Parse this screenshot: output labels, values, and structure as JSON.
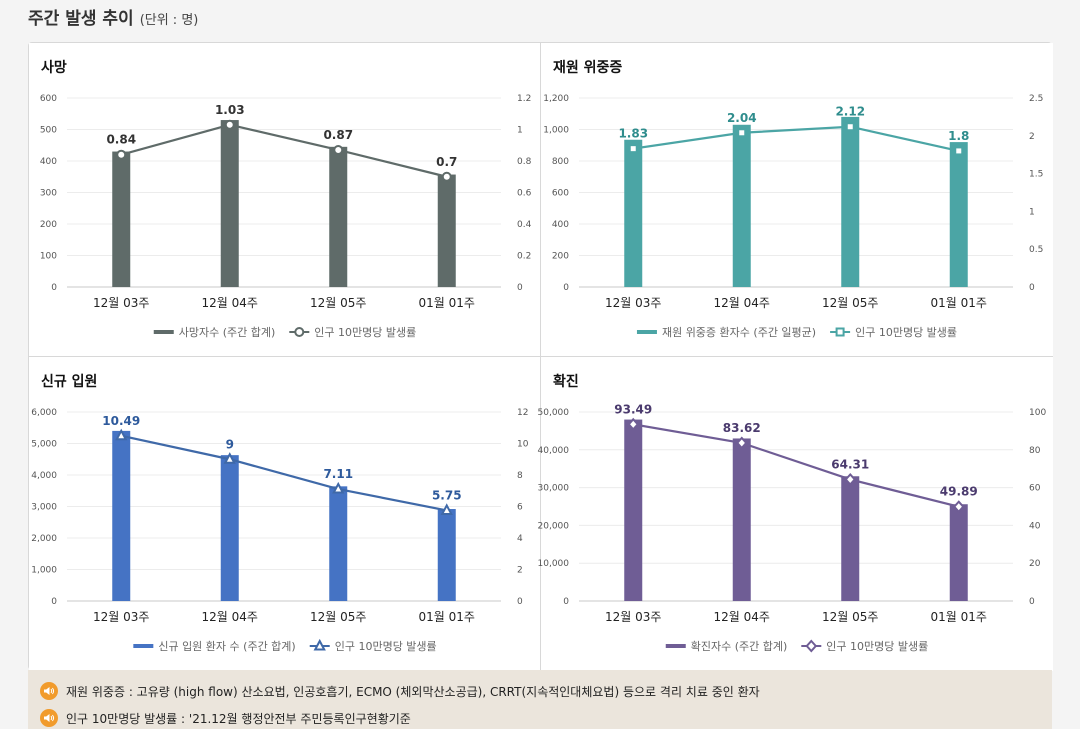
{
  "header": {
    "title": "주간 발생 추이",
    "unit": "(단위 : 명)"
  },
  "charts": [
    {
      "panel_title": "사망",
      "type": "bar+line",
      "categories": [
        "12월 03주",
        "12월 04주",
        "12월 05주",
        "01월 01주"
      ],
      "bar_series": {
        "name": "사망자수 (주간 합계)",
        "values": [
          430,
          530,
          445,
          357
        ],
        "color": "#5f6b69"
      },
      "line_series": {
        "name": "인구 10만명당 발생률",
        "values": [
          0.84,
          1.03,
          0.87,
          0.7
        ],
        "labels": [
          "0.84",
          "1.03",
          "0.87",
          "0.7"
        ],
        "color": "#5f6b69",
        "marker": "circle",
        "label_color": "#333333"
      },
      "left_axis": {
        "min": 0,
        "max": 600,
        "ticks": [
          "0",
          "100",
          "200",
          "300",
          "400",
          "500",
          "600"
        ]
      },
      "right_axis": {
        "min": 0,
        "max": 1.2,
        "ticks": [
          "0",
          "0.2",
          "0.4",
          "0.6",
          "0.8",
          "1",
          "1.2"
        ]
      },
      "grid": true,
      "legend": "bottom"
    },
    {
      "panel_title": "재원 위중증",
      "type": "bar+line",
      "categories": [
        "12월 03주",
        "12월 04주",
        "12월 05주",
        "01월 01주"
      ],
      "bar_series": {
        "name": "재원 위중증 환자수 (주간 일평균)",
        "values": [
          935,
          1030,
          1080,
          920
        ],
        "color": "#4ba5a5"
      },
      "line_series": {
        "name": "인구 10만명당 발생률",
        "values": [
          1.83,
          2.04,
          2.12,
          1.8
        ],
        "labels": [
          "1.83",
          "2.04",
          "2.12",
          "1.8"
        ],
        "color": "#4ba5a5",
        "marker": "square",
        "label_color": "#2f8d8d"
      },
      "left_axis": {
        "min": 0,
        "max": 1200,
        "ticks": [
          "0",
          "200",
          "400",
          "600",
          "800",
          "1,000",
          "1,200"
        ]
      },
      "right_axis": {
        "min": 0,
        "max": 2.5,
        "ticks": [
          "0",
          "0.5",
          "1",
          "1.5",
          "2",
          "2.5"
        ]
      },
      "grid": true,
      "legend": "bottom"
    },
    {
      "panel_title": "신규 입원",
      "type": "bar+line",
      "categories": [
        "12월 03주",
        "12월 04주",
        "12월 05주",
        "01월 01주"
      ],
      "bar_series": {
        "name": "신규 입원 환자 수 (주간 합계)",
        "values": [
          5400,
          4630,
          3640,
          2920
        ],
        "color": "#4573c4"
      },
      "line_series": {
        "name": "인구 10만명당 발생률",
        "values": [
          10.49,
          9,
          7.11,
          5.75
        ],
        "labels": [
          "10.49",
          "9",
          "7.11",
          "5.75"
        ],
        "color": "#3f69a8",
        "marker": "triangle",
        "label_color": "#2e5a9c"
      },
      "left_axis": {
        "min": 0,
        "max": 6000,
        "ticks": [
          "0",
          "1,000",
          "2,000",
          "3,000",
          "4,000",
          "5,000",
          "6,000"
        ]
      },
      "right_axis": {
        "min": 0,
        "max": 12,
        "ticks": [
          "0",
          "2",
          "4",
          "6",
          "8",
          "10",
          "12"
        ]
      },
      "grid": true,
      "legend": "bottom"
    },
    {
      "panel_title": "확진",
      "type": "bar+line",
      "categories": [
        "12월 03주",
        "12월 04주",
        "12월 05주",
        "01월 01주"
      ],
      "bar_series": {
        "name": "확진자수 (주간 합계)",
        "values": [
          48000,
          43000,
          33000,
          25600
        ],
        "color": "#6f5d95"
      },
      "line_series": {
        "name": "인구 10만명당 발생률",
        "values": [
          93.49,
          83.62,
          64.31,
          49.89
        ],
        "labels": [
          "93.49",
          "83.62",
          "64.31",
          "49.89"
        ],
        "color": "#6f5d95",
        "marker": "diamond",
        "label_color": "#4b3b6e"
      },
      "left_axis": {
        "min": 0,
        "max": 50000,
        "ticks": [
          "0",
          "10,000",
          "20,000",
          "30,000",
          "40,000",
          "50,000"
        ]
      },
      "right_axis": {
        "min": 0,
        "max": 100,
        "ticks": [
          "0",
          "20",
          "40",
          "60",
          "80",
          "100"
        ]
      },
      "grid": true,
      "legend": "bottom"
    }
  ],
  "notes": [
    {
      "icon": "speaker-icon",
      "text": "재원 위중증 : 고유량 (high flow) 산소요법, 인공호흡기, ECMO (체외막산소공급), CRRT(지속적인대체요법) 등으로 격리 치료 중인 환자"
    },
    {
      "icon": "speaker-icon",
      "text": "인구 10만명당 발생률 : '21.12월 행정안전부 주민등록인구현황기준"
    }
  ]
}
